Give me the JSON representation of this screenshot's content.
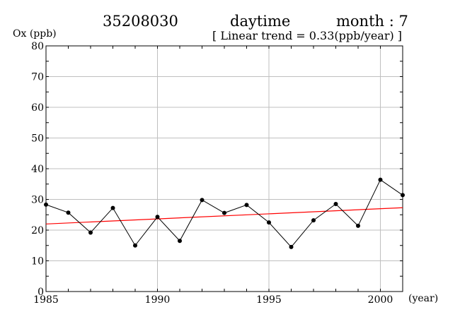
{
  "chart_data": {
    "type": "line",
    "title_station": "35208030",
    "title_period": "daytime",
    "title_month": "month : 7",
    "trend_note": "[ Linear trend = 0.33(ppb/year) ]",
    "ylabel": "Ox (ppb)",
    "xunit": "(year)",
    "xlim": [
      1985,
      2001
    ],
    "ylim": [
      0,
      80
    ],
    "xticks": [
      1985,
      1990,
      1995,
      2000
    ],
    "yticks": [
      0,
      10,
      20,
      30,
      40,
      50,
      60,
      70,
      80
    ],
    "grid": true,
    "series": [
      {
        "x": [
          1985,
          1986,
          1987,
          1988,
          1989,
          1990,
          1991,
          1992,
          1993,
          1994,
          1995,
          1996,
          1997,
          1998,
          1999,
          2000,
          2001
        ],
        "values": [
          28.3,
          25.7,
          19.2,
          27.2,
          15.0,
          24.3,
          16.5,
          29.8,
          25.6,
          28.2,
          22.5,
          14.5,
          23.2,
          28.5,
          21.4,
          36.4,
          31.4
        ],
        "color": "#000000"
      }
    ],
    "trend_line": {
      "x": [
        1985,
        2001
      ],
      "values": [
        22.0,
        27.3
      ],
      "color": "#ff0000"
    }
  }
}
